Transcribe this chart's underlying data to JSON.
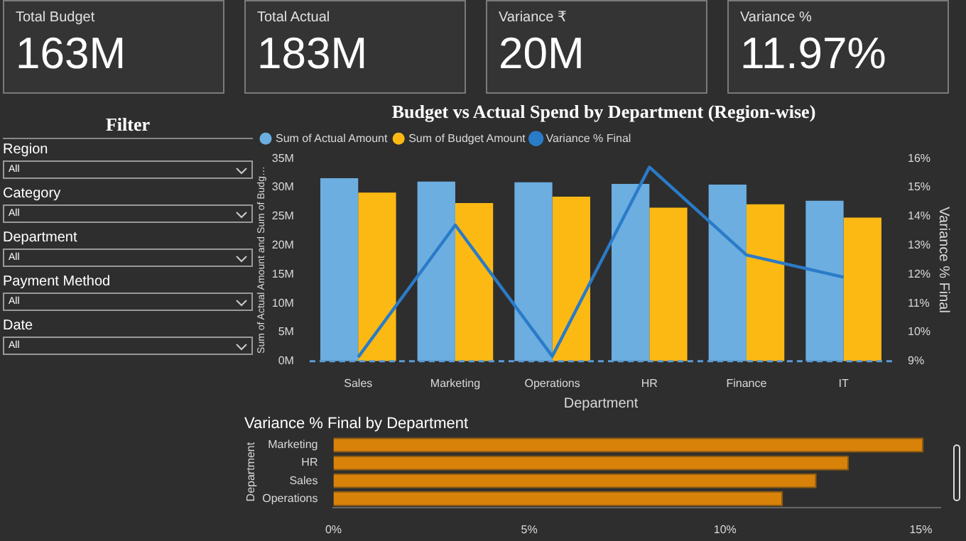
{
  "chart_data": [
    {
      "type": "other",
      "categories": [
        "Total Budget",
        "Total Actual",
        "Variance ₹",
        "Variance %"
      ],
      "value_labels": [
        "163M",
        "183M",
        "20M",
        "11.97%"
      ]
    },
    {
      "type": "other",
      "title": "Filter",
      "annotations": [
        "Region",
        "All",
        "Category",
        "All",
        "Department",
        "All",
        "Payment Method",
        "All",
        "Date",
        "All"
      ]
    },
    {
      "type": "bar",
      "title": "Budget vs Actual Spend by Department (Region-wise)",
      "xlabel": "Department",
      "ylabel": "Sum of Actual Amount and Sum of Budg…",
      "y2label": "Variance % Final",
      "categories": [
        "Sales",
        "Marketing",
        "Operations",
        "HR",
        "Finance",
        "IT"
      ],
      "series": [
        {
          "name": "Sum of Actual Amount",
          "color": "#6caee0",
          "values": [
            31.6,
            31.0,
            30.9,
            30.6,
            30.5,
            27.7
          ]
        },
        {
          "name": "Sum of Budget Amount",
          "color": "#fdb913",
          "values": [
            29.1,
            27.3,
            28.4,
            26.5,
            27.1,
            24.8
          ]
        },
        {
          "name": "Variance % Final",
          "type": "line",
          "axis": "y2",
          "color": "#2a7bc8",
          "values": [
            9.14,
            13.7,
            9.17,
            15.7,
            12.67,
            11.9
          ]
        }
      ],
      "ylim": [
        0,
        35
      ],
      "yticks": [
        {
          "value": 0,
          "label": "0M"
        },
        {
          "value": 5,
          "label": "5M"
        },
        {
          "value": 10,
          "label": "10M"
        },
        {
          "value": 15,
          "label": "15M"
        },
        {
          "value": 20,
          "label": "20M"
        },
        {
          "value": 25,
          "label": "25M"
        },
        {
          "value": 30,
          "label": "30M"
        },
        {
          "value": 35,
          "label": "35M"
        }
      ],
      "y2lim": [
        9,
        16
      ],
      "y2ticks": [
        {
          "value": 9,
          "label": "9%"
        },
        {
          "value": 10,
          "label": "10%"
        },
        {
          "value": 11,
          "label": "11%"
        },
        {
          "value": 12,
          "label": "12%"
        },
        {
          "value": 13,
          "label": "13%"
        },
        {
          "value": 14,
          "label": "14%"
        },
        {
          "value": 15,
          "label": "15%"
        },
        {
          "value": 16,
          "label": "16%"
        }
      ],
      "ref_lines": [
        {
          "axis": "y",
          "value": 0,
          "color": "#5b9bd5",
          "line_style": "dashed"
        }
      ],
      "legend": "top left",
      "marker": "none",
      "grid": false
    },
    {
      "type": "bar",
      "orientation": "horizontal",
      "title": "Variance % Final by Department",
      "ylabel": "Department",
      "categories": [
        "Marketing",
        "HR",
        "Sales",
        "Operations"
      ],
      "values": [
        15.07,
        13.16,
        12.34,
        11.48
      ],
      "color": "#d9820a",
      "xlim": [
        0,
        15.5
      ],
      "xticks": [
        {
          "value": 0,
          "label": "0%"
        },
        {
          "value": 5,
          "label": "5%"
        },
        {
          "value": 10,
          "label": "10%"
        },
        {
          "value": 15,
          "label": "15%"
        }
      ],
      "grid": false,
      "legend": false
    }
  ]
}
